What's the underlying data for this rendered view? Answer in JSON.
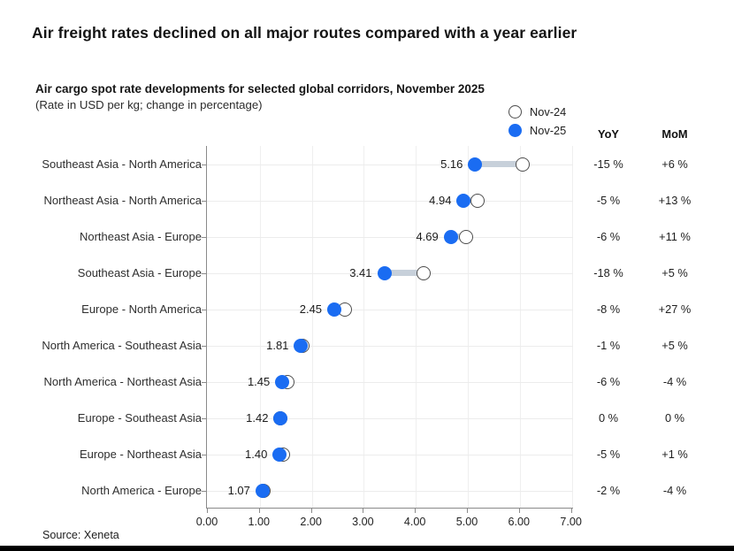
{
  "title": "Air freight rates declined on all major routes compared with a year earlier",
  "subtitle": "Air cargo spot rate developments for selected global corridors, November 2025",
  "note": "(Rate in USD per kg; change in percentage)",
  "source": "Source: Xeneta",
  "legend": {
    "nov24_label": "Nov-24",
    "nov25_label": "Nov-25"
  },
  "columns": {
    "yoy_header": "YoY",
    "mom_header": "MoM"
  },
  "colors": {
    "nov25_blue": "#1a6cf2",
    "nov24_fill": "#ffffff",
    "nov24_stroke": "#4d4d4d",
    "connector": "#c7d0da",
    "axis": "#8a8a8a",
    "gridline": "#ececec"
  },
  "chart_data": {
    "type": "scatter",
    "subtype": "dumbbell-dot-plot",
    "title": "Air cargo spot rate developments for selected global corridors, November 2025",
    "xlabel": "Rate in USD per kg",
    "ylabel": "",
    "xlim": [
      0,
      7
    ],
    "xticks": [
      "0.00",
      "1.00",
      "2.00",
      "3.00",
      "4.00",
      "5.00",
      "6.00",
      "7.00"
    ],
    "grid": true,
    "legend_position": "top-right",
    "categories": [
      "Southeast Asia - North America",
      "Northeast Asia - North America",
      "Northeast Asia - Europe",
      "Southeast Asia - Europe",
      "Europe - North America",
      "North America - Southeast Asia",
      "North America - Northeast Asia",
      "Europe - Southeast Asia",
      "Europe - Northeast Asia",
      "North America - Europe"
    ],
    "series": [
      {
        "name": "Nov-24",
        "values": [
          6.07,
          5.2,
          4.99,
          4.16,
          2.66,
          1.83,
          1.54,
          1.42,
          1.47,
          1.09
        ]
      },
      {
        "name": "Nov-25",
        "values": [
          5.16,
          4.94,
          4.69,
          3.41,
          2.45,
          1.81,
          1.45,
          1.42,
          1.4,
          1.07
        ]
      }
    ],
    "value_labels": [
      "5.16",
      "4.94",
      "4.69",
      "3.41",
      "2.45",
      "1.81",
      "1.45",
      "1.42",
      "1.40",
      "1.07"
    ],
    "yoy": [
      "-15 %",
      "-5 %",
      "-6 %",
      "-18 %",
      "-8 %",
      "-1 %",
      "-6 %",
      "0 %",
      "-5 %",
      "-2 %"
    ],
    "mom": [
      "+6 %",
      "+13 %",
      "+11 %",
      "+5 %",
      "+27 %",
      "+5 %",
      "-4 %",
      "0 %",
      "+1 %",
      "-4 %"
    ]
  }
}
